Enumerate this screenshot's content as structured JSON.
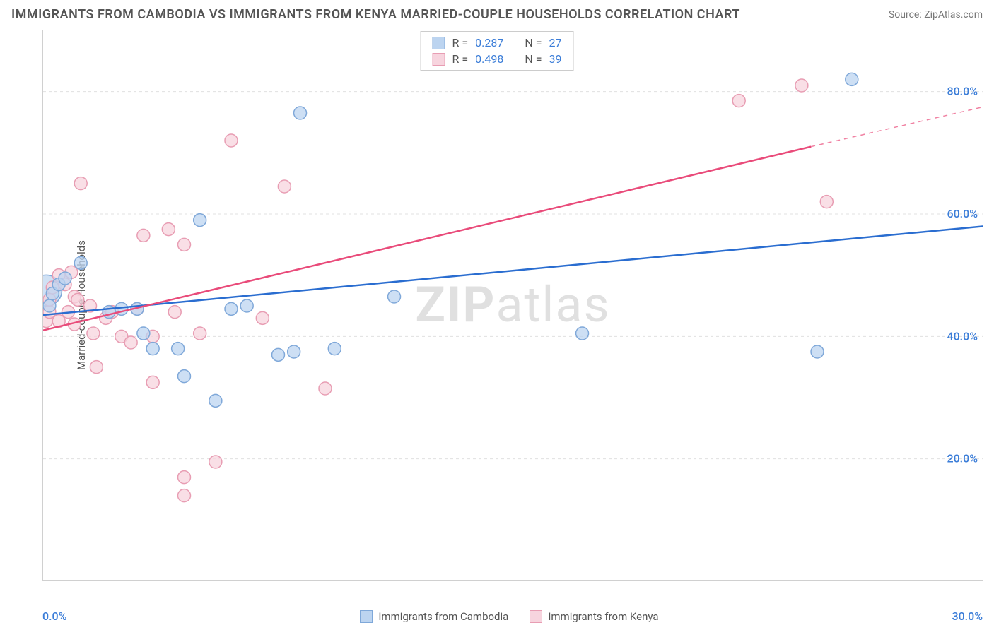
{
  "title": "IMMIGRANTS FROM CAMBODIA VS IMMIGRANTS FROM KENYA MARRIED-COUPLE HOUSEHOLDS CORRELATION CHART",
  "source": "Source: ZipAtlas.com",
  "watermark_zip": "ZIP",
  "watermark_atlas": "atlas",
  "chart": {
    "type": "scatter",
    "ylabel": "Married-couple Households",
    "xlim": [
      0,
      30
    ],
    "ylim": [
      0,
      90
    ],
    "xticks": [
      0,
      3,
      6,
      9,
      12,
      15,
      18,
      21,
      24,
      27,
      30
    ],
    "ytick_labels": [
      "20.0%",
      "40.0%",
      "60.0%",
      "80.0%"
    ],
    "ytick_values": [
      20,
      40,
      60,
      80
    ],
    "xmin_label": "0.0%",
    "xmax_label": "30.0%",
    "background_color": "#ffffff",
    "grid_color": "#e0e0e0",
    "axis_color": "#d0d0d0",
    "label_fontsize": 15,
    "tick_fontsize": 16,
    "tick_color": "#3b7dd8",
    "marker_radius": 9,
    "marker_stroke_width": 1.5,
    "line_width": 2.5,
    "series": [
      {
        "name": "Immigrants from Cambodia",
        "color_fill": "#bcd4f0",
        "color_stroke": "#7fa8d9",
        "line_color": "#2a6dd0",
        "r": "0.287",
        "n": "27",
        "regression": {
          "x1": 0,
          "y1": 43.5,
          "x2": 30,
          "y2": 58.0
        },
        "large_marker": {
          "x": 0.1,
          "y": 47.5,
          "radius": 22
        },
        "points": [
          [
            0.2,
            45.0
          ],
          [
            0.3,
            47.0
          ],
          [
            0.5,
            48.5
          ],
          [
            0.7,
            49.5
          ],
          [
            1.2,
            52.0
          ],
          [
            2.1,
            44.0
          ],
          [
            2.5,
            44.5
          ],
          [
            3.0,
            44.5
          ],
          [
            3.2,
            40.5
          ],
          [
            5.0,
            59.0
          ],
          [
            3.5,
            38.0
          ],
          [
            4.3,
            38.0
          ],
          [
            4.5,
            33.5
          ],
          [
            5.5,
            29.5
          ],
          [
            6.0,
            44.5
          ],
          [
            6.5,
            45.0
          ],
          [
            7.5,
            37.0
          ],
          [
            8.0,
            37.5
          ],
          [
            8.2,
            76.5
          ],
          [
            9.3,
            38.0
          ],
          [
            11.2,
            46.5
          ],
          [
            17.2,
            40.5
          ],
          [
            24.7,
            37.5
          ],
          [
            25.8,
            82.0
          ]
        ]
      },
      {
        "name": "Immigrants from Kenya",
        "color_fill": "#f7d4de",
        "color_stroke": "#e89db3",
        "line_color": "#e94b7a",
        "r": "0.498",
        "n": "39",
        "regression": {
          "x1": 0,
          "y1": 41.0,
          "x2": 24.5,
          "y2": 71.0
        },
        "regression_dashed": {
          "x1": 24.5,
          "y1": 71.0,
          "x2": 30,
          "y2": 77.5
        },
        "points": [
          [
            0.1,
            42.5
          ],
          [
            0.2,
            44.0
          ],
          [
            0.2,
            46.0
          ],
          [
            0.3,
            48.0
          ],
          [
            0.5,
            50.0
          ],
          [
            0.5,
            42.5
          ],
          [
            0.7,
            48.5
          ],
          [
            0.8,
            44.0
          ],
          [
            0.9,
            50.5
          ],
          [
            1.0,
            46.5
          ],
          [
            1.0,
            42.0
          ],
          [
            1.1,
            46.0
          ],
          [
            1.2,
            65.0
          ],
          [
            1.5,
            45.0
          ],
          [
            1.6,
            40.5
          ],
          [
            1.7,
            35.0
          ],
          [
            2.0,
            43.0
          ],
          [
            2.2,
            44.0
          ],
          [
            2.5,
            40.0
          ],
          [
            2.8,
            39.0
          ],
          [
            3.0,
            44.5
          ],
          [
            3.2,
            56.5
          ],
          [
            3.5,
            32.5
          ],
          [
            3.5,
            40.0
          ],
          [
            4.0,
            57.5
          ],
          [
            4.2,
            44.0
          ],
          [
            4.5,
            55.0
          ],
          [
            4.5,
            17.0
          ],
          [
            4.5,
            14.0
          ],
          [
            5.0,
            40.5
          ],
          [
            5.5,
            19.5
          ],
          [
            6.0,
            72.0
          ],
          [
            7.0,
            43.0
          ],
          [
            7.7,
            64.5
          ],
          [
            9.0,
            31.5
          ],
          [
            22.2,
            78.5
          ],
          [
            24.2,
            81.0
          ],
          [
            25.0,
            62.0
          ]
        ]
      }
    ]
  },
  "legend_r_label": "R =",
  "legend_n_label": "N ="
}
